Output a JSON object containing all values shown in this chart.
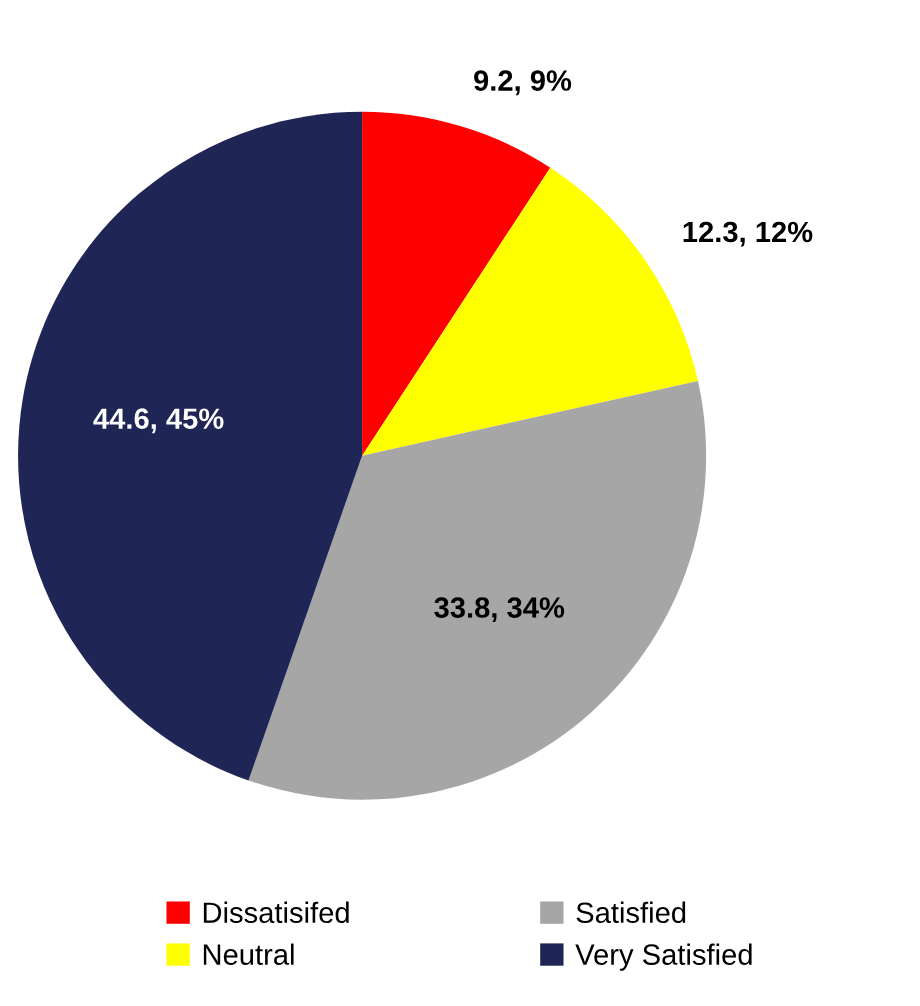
{
  "chart_data": {
    "type": "pie",
    "categories": [
      "Dissatisifed",
      "Neutral",
      "Satisfied",
      "Very Satisfied"
    ],
    "values": [
      9.2,
      12.3,
      33.8,
      44.6
    ],
    "colors": [
      "#ff0000",
      "#ffff00",
      "#a6a6a6",
      "#1f2656"
    ],
    "value_labels": [
      "9.2, 9%",
      "12.3, 12%",
      "33.8, 34%",
      "44.6, 45%"
    ],
    "legend": "bottom"
  }
}
